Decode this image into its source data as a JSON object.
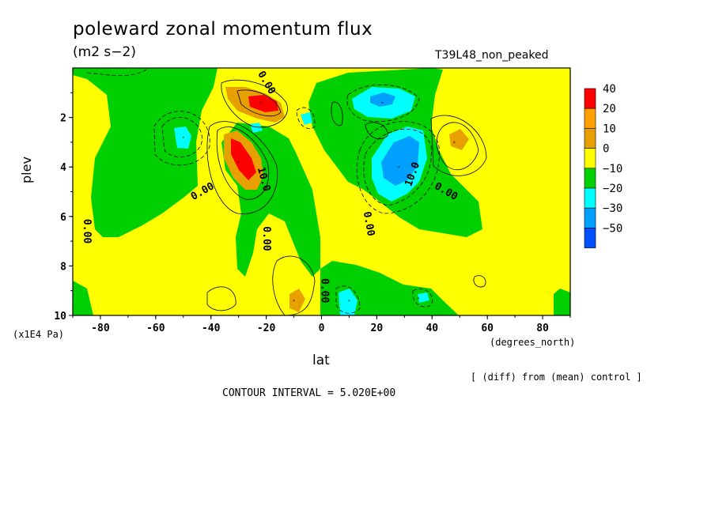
{
  "chart_data": {
    "type": "heatmap",
    "title": "poleward zonal momentum flux",
    "units_label": "(m2 s−2)",
    "run_label": "T39L48_non_peaked",
    "xlabel": "lat",
    "x_units": "(degrees_north)",
    "ylabel": "plev",
    "y_units": "(x1E4 Pa)",
    "xlim": [
      -90,
      90
    ],
    "ylim": [
      10,
      0
    ],
    "x_ticks": [
      "-80",
      "-60",
      "-40",
      "-20",
      "0",
      "20",
      "40",
      "60",
      "80"
    ],
    "y_ticks": [
      "2",
      "4",
      "6",
      "8",
      "10"
    ],
    "contour_labels": [
      "0.00",
      "0.00",
      "0.00",
      "0.00",
      "0.00",
      "0.00",
      "0.00",
      "10.0",
      "10.0"
    ],
    "legend": {
      "position": "right",
      "labels": [
        "40",
        "20",
        "10",
        "0",
        "−10",
        "−20",
        "−30",
        "−50"
      ],
      "colors": [
        "#ff0000",
        "#ffa000",
        "#e8a000",
        "#ffff00",
        "#00d000",
        "#00ffff",
        "#00a0ff",
        "#0050ff"
      ]
    },
    "features": [
      {
        "lat": -22,
        "plev": 1.4,
        "value": 30
      },
      {
        "lat": -30,
        "plev": 3.8,
        "value": 30
      },
      {
        "lat": -50,
        "plev": 2.8,
        "value": -15
      },
      {
        "lat": 22,
        "plev": 1.4,
        "value": -25
      },
      {
        "lat": 28,
        "plev": 4.0,
        "value": -25
      },
      {
        "lat": 48,
        "plev": 3.0,
        "value": 15
      },
      {
        "lat": -10,
        "plev": 9.4,
        "value": 15
      },
      {
        "lat": 10,
        "plev": 9.4,
        "value": -15
      },
      {
        "lat": 35,
        "plev": 9.3,
        "value": -15
      }
    ],
    "footer": {
      "diff_note": "[ (diff) from (mean) control ]",
      "contour_interval": "CONTOUR INTERVAL = 5.020E+00"
    }
  }
}
